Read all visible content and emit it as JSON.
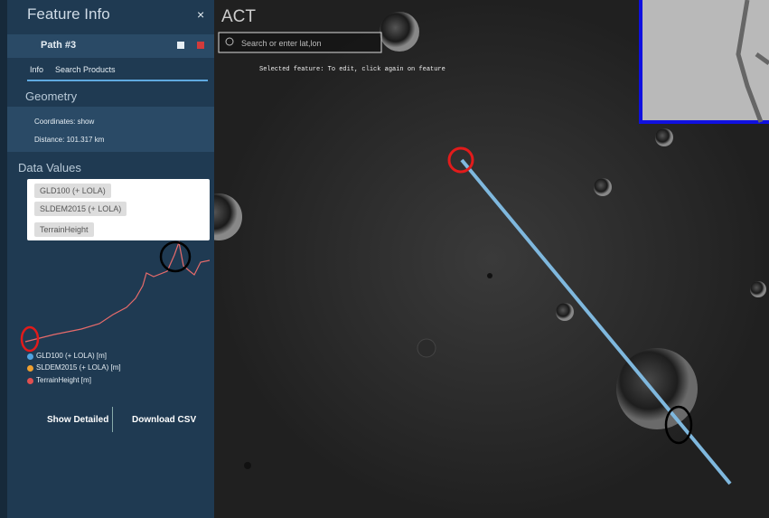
{
  "sidebar": {
    "title": "Feature Info",
    "close": "×",
    "feature_name": "Path #3",
    "tabs": [
      "Info",
      "Search Products"
    ],
    "section": "Geometry",
    "coordinates": "Coordinates: show",
    "distance": "Distance: 101.317 km",
    "data_values_title": "Data Values",
    "data_sources": [
      "GLD100 (+ LOLA)",
      "SLDEM2015 (+ LOLA)",
      "TerrainHeight"
    ],
    "legend": [
      "GLD100 (+ LOLA) [m]",
      "SLDEM2015 (+ LOLA) [m]",
      "TerrainHeight [m]"
    ],
    "buttons": [
      "Show Detailed",
      "Download CSV"
    ]
  },
  "map": {
    "mission": "ACT",
    "search_placeholder": "Search or enter lat,lon",
    "hint": "Selected feature: To edit, click again on feature"
  }
}
